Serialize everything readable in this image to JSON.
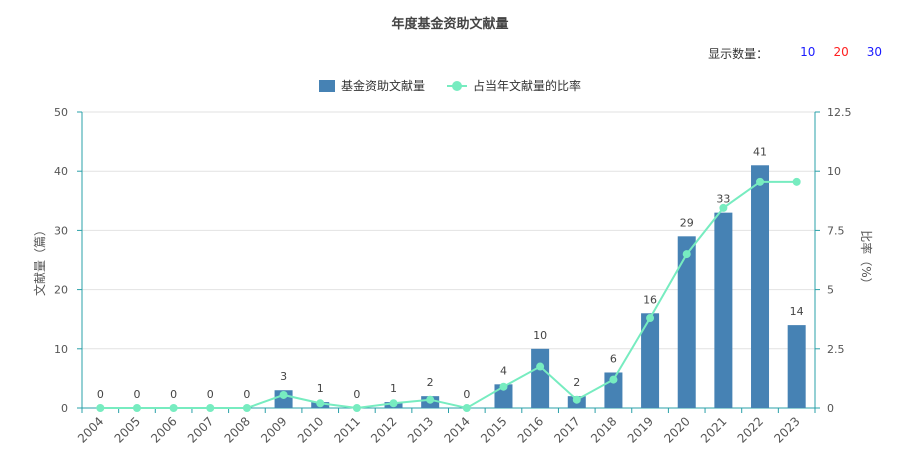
{
  "title": "年度基金资助文献量",
  "count_switch": {
    "label": "显示数量：",
    "options": [
      {
        "value": "10",
        "color": "#1a1aff"
      },
      {
        "value": "20",
        "color": "#ff2020"
      },
      {
        "value": "30",
        "color": "#1a1aff"
      }
    ]
  },
  "colors": {
    "bar": "#4682b4",
    "line": "#77ecc0",
    "axis": "#2aa0a8",
    "grid": "#e2e2e2",
    "text": "#555555"
  },
  "chart_data": {
    "type": "bar",
    "title": "年度基金资助文献量",
    "categories": [
      "2004",
      "2005",
      "2006",
      "2007",
      "2008",
      "2009",
      "2010",
      "2011",
      "2012",
      "2013",
      "2014",
      "2015",
      "2016",
      "2017",
      "2018",
      "2019",
      "2020",
      "2021",
      "2022",
      "2023"
    ],
    "series": [
      {
        "name": "基金资助文献量",
        "type": "bar",
        "axis": "left",
        "values": [
          0,
          0,
          0,
          0,
          0,
          3,
          1,
          0,
          1,
          2,
          0,
          4,
          10,
          2,
          6,
          16,
          29,
          33,
          41,
          14
        ]
      },
      {
        "name": "占当年文献量的比率",
        "type": "line",
        "axis": "right",
        "values": [
          0,
          0,
          0,
          0,
          0,
          0.55,
          0.2,
          0,
          0.2,
          0.35,
          0,
          0.9,
          1.75,
          0.35,
          1.2,
          3.8,
          6.5,
          8.45,
          9.55,
          9.55
        ]
      }
    ],
    "ylabel": "文献量（篇）",
    "ylabel_right": "比率（%）",
    "ylim": [
      0,
      50
    ],
    "y_ticks": [
      "0",
      "10",
      "20",
      "30",
      "40",
      "50"
    ],
    "ylim_right": [
      0,
      12.5
    ],
    "y_ticks_right": [
      "0",
      "2.5",
      "5",
      "7.5",
      "10",
      "12.5"
    ],
    "grid": true,
    "legend_position": "top-center"
  }
}
